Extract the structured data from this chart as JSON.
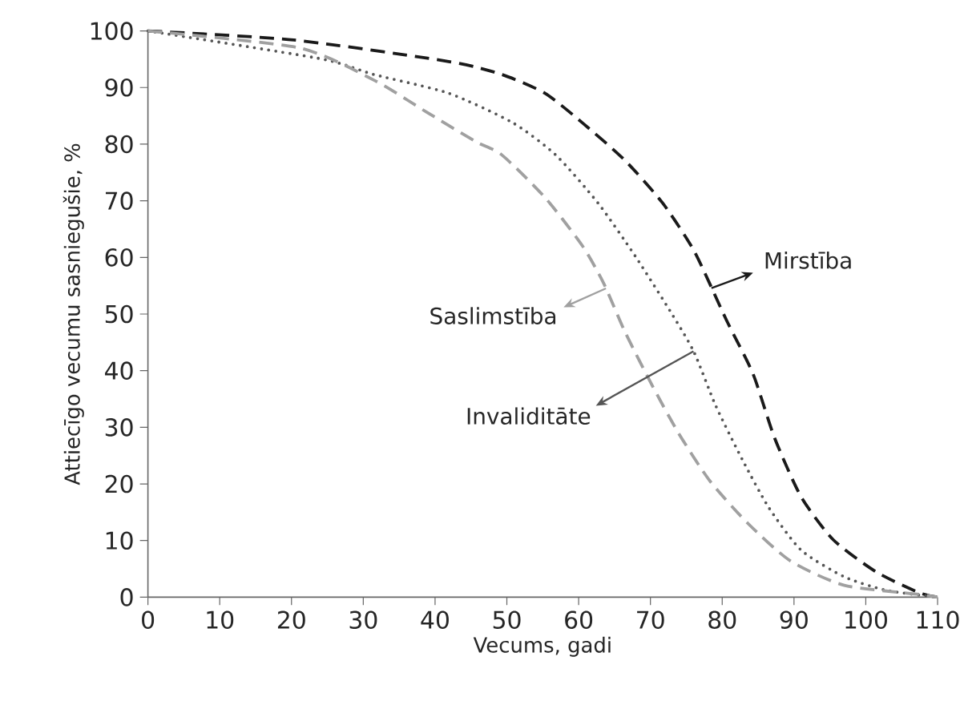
{
  "chart_data": {
    "type": "line",
    "legend": "center",
    "xlabel": "Vecums, gadi",
    "ylabel": "Attiecīgo vecumu sasniegušie, %",
    "xlim": [
      0,
      110
    ],
    "ylim": [
      0,
      100
    ],
    "xticks": [
      0,
      10,
      20,
      30,
      40,
      50,
      60,
      70,
      80,
      90,
      100,
      110
    ],
    "yticks": [
      0,
      10,
      20,
      30,
      40,
      50,
      60,
      70,
      80,
      90,
      100
    ],
    "series": [
      {
        "name": "Mirstība",
        "color": "#1a1a1a",
        "line_style": "dashed",
        "x": [
          0,
          20.3,
          41.9,
          49.3,
          55.3,
          60.5,
          66.4,
          71.7,
          76.1,
          80.6,
          84.3,
          87.3,
          91.0,
          95.5,
          101.4,
          107.4,
          110
        ],
        "values": [
          100,
          98.4,
          94.6,
          92.3,
          89.0,
          83.8,
          77.2,
          69.6,
          61.1,
          48.9,
          39.4,
          28.1,
          17.7,
          10.1,
          4.5,
          0.8,
          0
        ]
      },
      {
        "name": "Invaliditāte",
        "color": "#555555",
        "line_style": "dotted",
        "x": [
          0,
          24,
          31.5,
          41.9,
          50.8,
          56.8,
          62.7,
          67.9,
          73.1,
          76.1,
          79.1,
          82.8,
          86.5,
          91.0,
          97.0,
          102.9,
          110
        ],
        "values": [
          100,
          95.1,
          92.3,
          89.0,
          83.8,
          78.1,
          69.6,
          60.2,
          49.8,
          43.2,
          33.8,
          24.3,
          15.8,
          8.3,
          3.6,
          1.2,
          0
        ]
      },
      {
        "name": "Saslimstība",
        "color": "#a0a0a0",
        "line_style": "dashed",
        "x": [
          0,
          21.1,
          31.5,
          38.9,
          45.6,
          49.3,
          55.3,
          60.5,
          63.5,
          66.4,
          70.2,
          73.9,
          78.3,
          83.6,
          89.5,
          97.0,
          107.4,
          110
        ],
        "values": [
          100,
          97,
          91.3,
          85.6,
          80.5,
          78.1,
          70.6,
          62.1,
          55.4,
          47.0,
          37.5,
          29.0,
          20.5,
          13.0,
          6.4,
          2.1,
          0.5,
          0
        ]
      }
    ]
  }
}
